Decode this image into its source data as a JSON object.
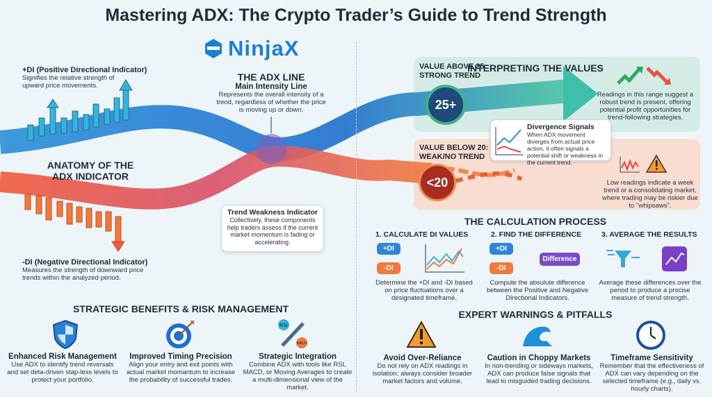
{
  "title": "Mastering ADX: The Crypto Trader’s Guide to Trend Strength",
  "logo": {
    "text": "NinjaX",
    "color": "#1d7fd4"
  },
  "anatomy": {
    "heading": "ANATOMY OF THE ADX INDICATOR",
    "plus_di": {
      "title": "+DI (Positive Directional Indicator)",
      "text": "Signifies the relative strength of upward price movements."
    },
    "minus_di": {
      "title": "-DI (Negative Directional Indicator)",
      "text": "Measures the strength of downward price trends within the analyzed period."
    },
    "adx_line": {
      "title": "THE ADX LINE",
      "subtitle": "Main Intensity Line",
      "text": "Represents the overall intensity of a trend, regardless of whether the price is moving up or down."
    },
    "weakness": {
      "title": "Trend Weakness Indicator",
      "text": "Collectively, these components help traders assess if the current market momentum is fading or accelerating."
    }
  },
  "interpreting": {
    "heading": "INTERPRETING THE VALUES",
    "strong": {
      "label": "VALUE ABOVE 25: STRONG TREND",
      "badge": "25+",
      "text": "Readings in this range suggest a robust trend is present, offering potential profit opportunities for trend-following strategies.",
      "color": "#d5ece6"
    },
    "weak": {
      "label": "VALUE BELOW 20: WEAK/NO TREND",
      "badge": "<20",
      "text": "Low readings indicate a week trend or a consolidating market, where trading may be riskier due to \"whipsaws\".",
      "color": "#f9ddd1"
    },
    "divergence": {
      "title": "Divergence Signals",
      "text": "When ADX movement diverges from actual price action, it often signals a potential shift or weakness in the current trend."
    }
  },
  "calculation": {
    "heading": "THE CALCULATION PROCESS",
    "steps": [
      {
        "title": "1. CALCULATE DI VALUES",
        "text": "Determine the +DI and -DI based on price fluctuations over a designated timeframe.",
        "pills": [
          "+DI",
          "-DI"
        ]
      },
      {
        "title": "2. FIND THE DIFFERENCE",
        "text": "Compute the absulute difference between the Positive and Negative Directional Indicators.",
        "pills": [
          "+DI",
          "-DI"
        ],
        "result": "Difference"
      },
      {
        "title": "3. AVERAGE THE RESULTS",
        "text": "Average these differences over the period to produce a procise measure of trend strength."
      }
    ]
  },
  "benefits": {
    "heading": "STRATEGIC BENEFITS & RISK MANAGEMENT",
    "items": [
      {
        "icon": "shield-icon",
        "title": "Enhanced Risk Management",
        "text": "Use ADX to identify trend reversals and set deta-driven stap-less levels to protect your portfolio."
      },
      {
        "icon": "target-icon",
        "title": "Improved Timing Precision",
        "text": "Align your entry and exit points with actual market momantum to increase the probability of successful trades."
      },
      {
        "icon": "wrench-icon",
        "title": "Strategic Integration",
        "text": "Combine ADX with tools like RSI, MACD, or Moving Averages to create a multi-dimensional view of the market.",
        "badges": [
          "RSI",
          "MACD"
        ]
      }
    ]
  },
  "warnings": {
    "heading": "EXPERT WARNINGS & PITFALLS",
    "items": [
      {
        "icon": "warning-icon",
        "title": "Avoid Over-Reliance",
        "text": "Do not rely on ADX readings in isolation; always consider broader market factors and volume."
      },
      {
        "icon": "wave-icon",
        "title": "Caution in Choppy Markets",
        "text": "In non-trending or sideways markets, ADX can produce false signals that lead to misguided trading decisions."
      },
      {
        "icon": "clock-icon",
        "title": "Timeframe Sensitivity",
        "text": "Remember that the effectiveness of ADX can vary depending on the selected timeframe (e.g., daily vs. hourly charts)."
      }
    ]
  }
}
